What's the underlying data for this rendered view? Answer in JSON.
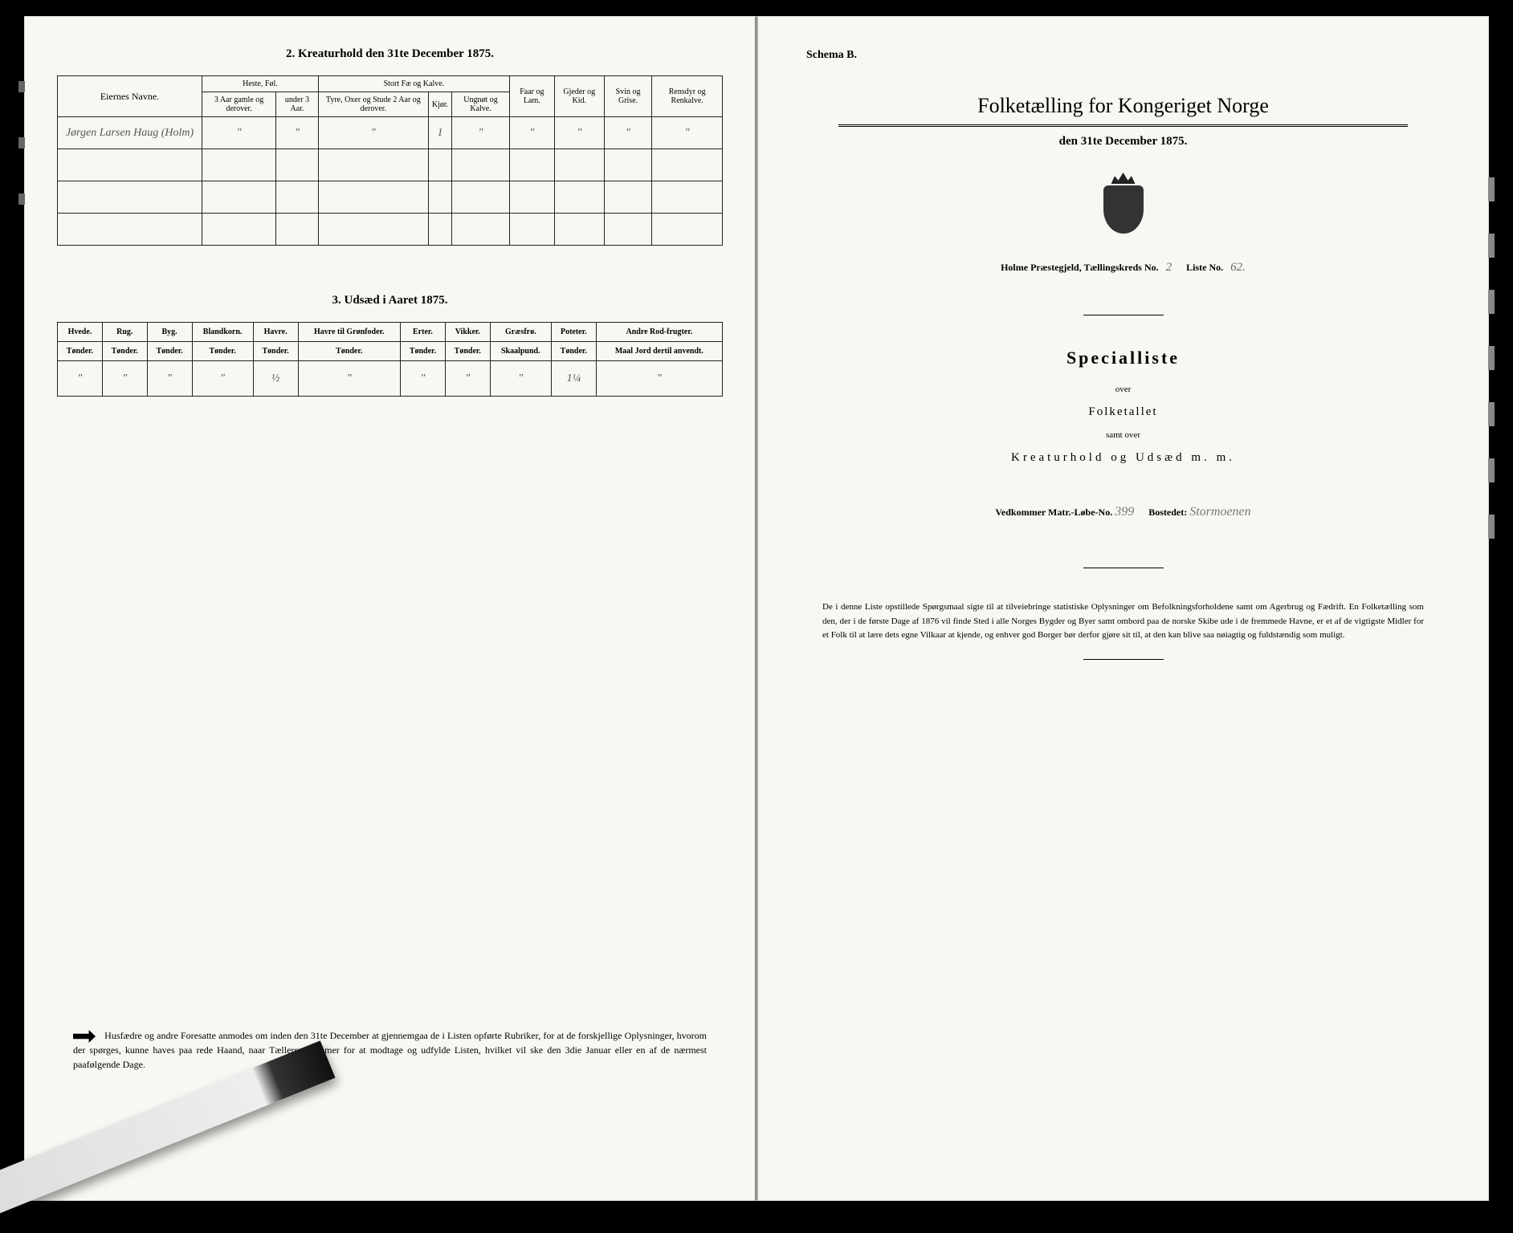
{
  "left": {
    "section2_title": "2.  Kreaturhold den 31te December 1875.",
    "table2": {
      "owner_header": "Eiernes Navne.",
      "heste_fol": "Heste, Føl.",
      "heste_col1": "3 Aar gamle og derover.",
      "heste_col2": "under 3 Aar.",
      "stort_fae": "Stort Fæ og Kalve.",
      "sf_col1": "Tyre, Oxer og Stude 2 Aar og derover.",
      "sf_col2": "Kjør.",
      "sf_col3": "Ungnøt og Kalve.",
      "faar": "Faar og Lam.",
      "gjeder": "Gjeder og Kid.",
      "svin": "Svin og Grise.",
      "rensdyr": "Rensdyr og Renkalve.",
      "row_owner": "Jørgen Larsen Haug (Holm)",
      "row_vals": [
        "\"",
        "\"",
        "\"",
        "1",
        "\"",
        "\"",
        "\"",
        "\"",
        "\""
      ]
    },
    "section3_title": "3.  Udsæd i Aaret 1875.",
    "table3": {
      "headers": [
        "Hvede.",
        "Rug.",
        "Byg.",
        "Blandkorn.",
        "Havre.",
        "Havre til Grønfoder.",
        "Erter.",
        "Vikker.",
        "Græsfrø.",
        "Poteter.",
        "Andre Rod-frugter."
      ],
      "sub": "Tønder.",
      "sub_graes": "Skaalpund.",
      "sub_andre": "Maal Jord dertil anvendt.",
      "vals": [
        "\"",
        "\"",
        "\"",
        "\"",
        "½",
        "\"",
        "\"",
        "\"",
        "\"",
        "1¼",
        "\""
      ]
    },
    "instruction": "Husfædre og andre Foresatte anmodes om inden den 31te December at gjennemgaa de i Listen opførte Rubriker, for at de forskjellige Oplysninger, hvorom der spørges, kunne haves paa rede Haand, naar Tælleren kommer for at modtage og udfylde Listen, hvilket vil ske den 3die Januar eller en af de nærmest paafølgende Dage."
  },
  "right": {
    "schema": "Schema B.",
    "main_title": "Folketælling for Kongeriget Norge",
    "subtitle": "den 31te December 1875.",
    "parish_label": "Holme Præstegjeld,  Tællingskreds No.",
    "parish_no": "2",
    "liste_label": "Liste No.",
    "liste_no": "62.",
    "specialliste": "Specialliste",
    "over": "over",
    "folketallet": "Folketallet",
    "samt_over": "samt over",
    "kreatur_line": "Kreaturhold og Udsæd m. m.",
    "vedkommer_label": "Vedkommer Matr.-Løbe-No.",
    "matr_no": "399",
    "bostedet_label": "Bostedet:",
    "bostedet": "Stormoenen",
    "bottom_text": "De i denne Liste opstillede Spørgsmaal sigte til at tilveiebringe statistiske Oplysninger om Befolkningsforholdene samt om Agerbrug og Fædrift. En Folketælling som den, der i de første Dage af 1876 vil finde Sted i alle Norges Bygder og Byer samt ombord paa de norske Skibe ude i de fremmede Havne, er et af de vigtigste Midler for et Folk til at lære dets egne Vilkaar at kjende, og enhver god Borger bør derfor gjøre sit til, at den kan blive saa nøiagtig og fuldstændig som muligt."
  }
}
